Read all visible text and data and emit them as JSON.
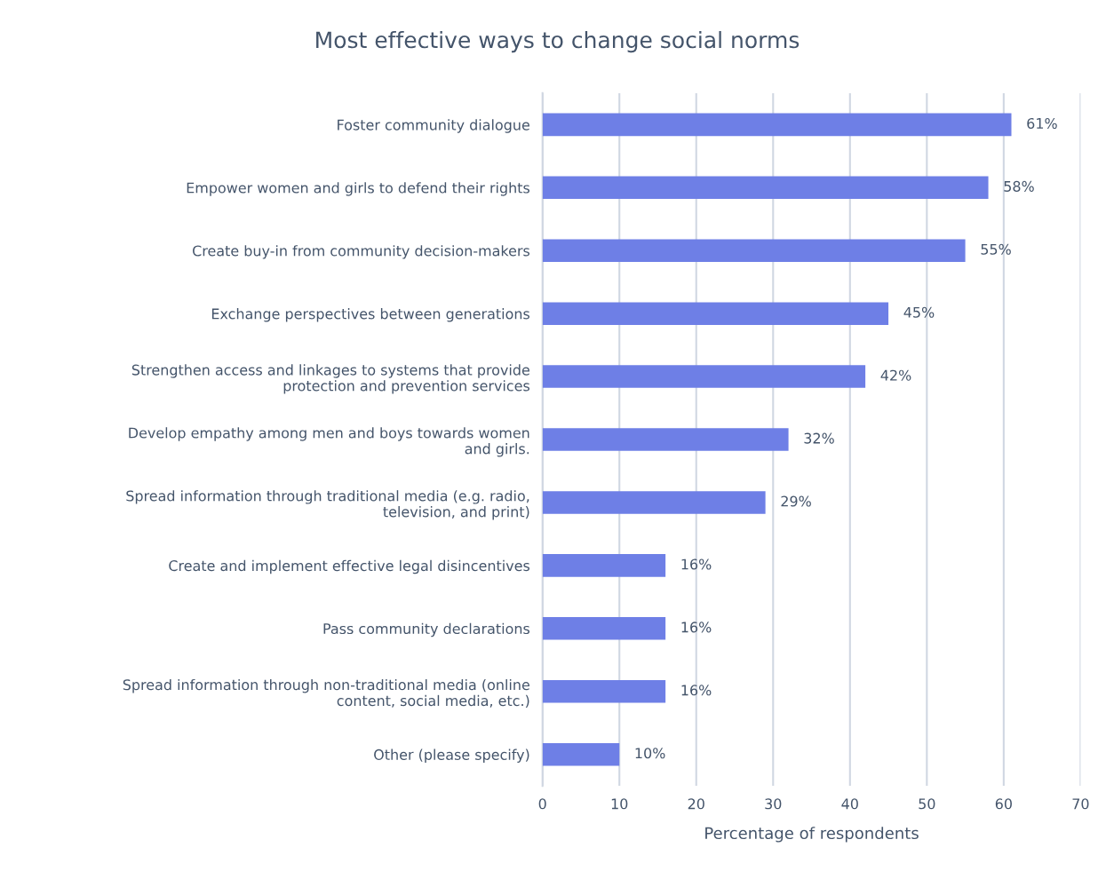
{
  "chart_data": {
    "type": "bar",
    "orientation": "horizontal",
    "title": "Most effective ways to change social norms",
    "xlabel": "Percentage of respondents",
    "categories": [
      "Foster community dialogue",
      "Empower women and girls to defend their rights",
      "Create buy-in from community decision-makers",
      "Exchange perspectives between generations",
      "Strengthen access and linkages to systems that provide\nprotection and prevention services",
      "Develop empathy among men and boys towards women\nand girls.",
      "Spread information through traditional media (e.g. radio,\ntelevision, and print)",
      "Create and implement effective legal disincentives",
      "Pass community declarations",
      "Spread information through non-traditional media (online\ncontent, social media, etc.)",
      "Other (please specify)"
    ],
    "values": [
      61,
      58,
      55,
      45,
      42,
      32,
      29,
      16,
      16,
      16,
      10
    ],
    "value_labels": [
      "61%",
      "58%",
      "55%",
      "45%",
      "42%",
      "32%",
      "29%",
      "16%",
      "16%",
      "16%",
      "10%"
    ],
    "color": "#6e7fe6",
    "xlim": [
      0,
      70
    ],
    "xticks": [
      0,
      10,
      20,
      30,
      40,
      50,
      60,
      70
    ],
    "grid": "x"
  }
}
